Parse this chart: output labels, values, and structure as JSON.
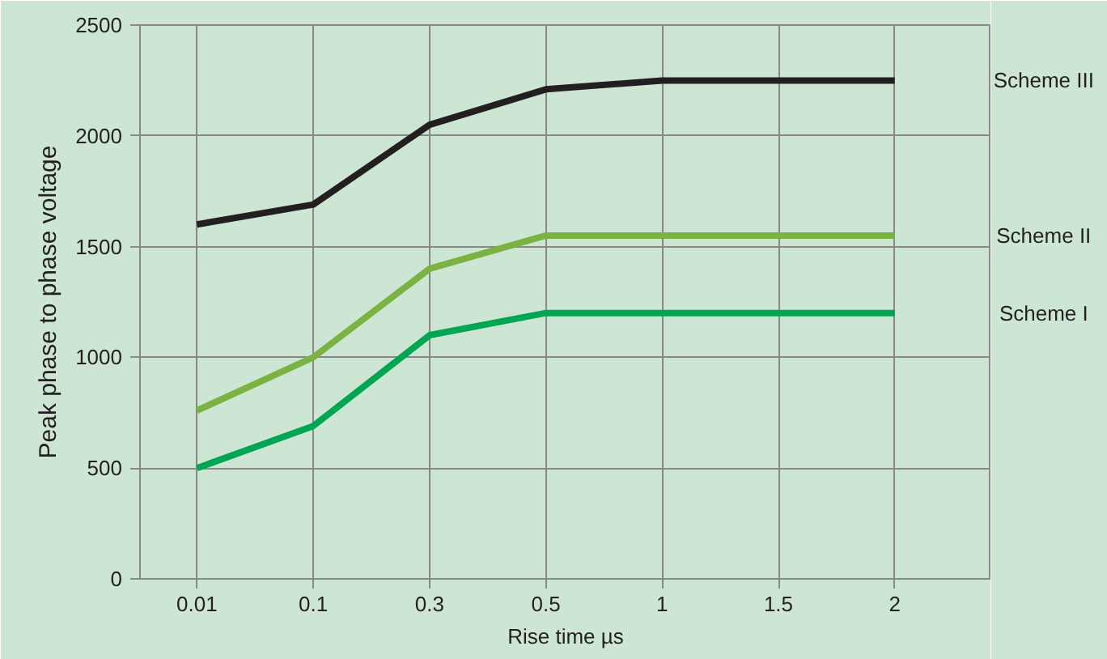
{
  "chart_data": {
    "type": "line",
    "xlabel": "Rise time µs",
    "ylabel": "Peak phase to phase voltage",
    "categories": [
      "0.01",
      "0.1",
      "0.3",
      "0.5",
      "1",
      "1.5",
      "2"
    ],
    "series": [
      {
        "name": "Scheme III",
        "color": "#231f20",
        "values": [
          1600,
          1690,
          2050,
          2210,
          2250,
          2250,
          2250
        ]
      },
      {
        "name": "Scheme II",
        "color": "#7ab342",
        "values": [
          760,
          1000,
          1400,
          1550,
          1550,
          1550,
          1550
        ]
      },
      {
        "name": "Scheme I",
        "color": "#00a651",
        "values": [
          500,
          690,
          1100,
          1200,
          1200,
          1200,
          1200
        ]
      }
    ],
    "ylim": [
      0,
      2500
    ],
    "yticks": [
      0,
      500,
      1000,
      1500,
      2000,
      2500
    ],
    "grid": true,
    "marker": "none",
    "line_style": "solid"
  }
}
